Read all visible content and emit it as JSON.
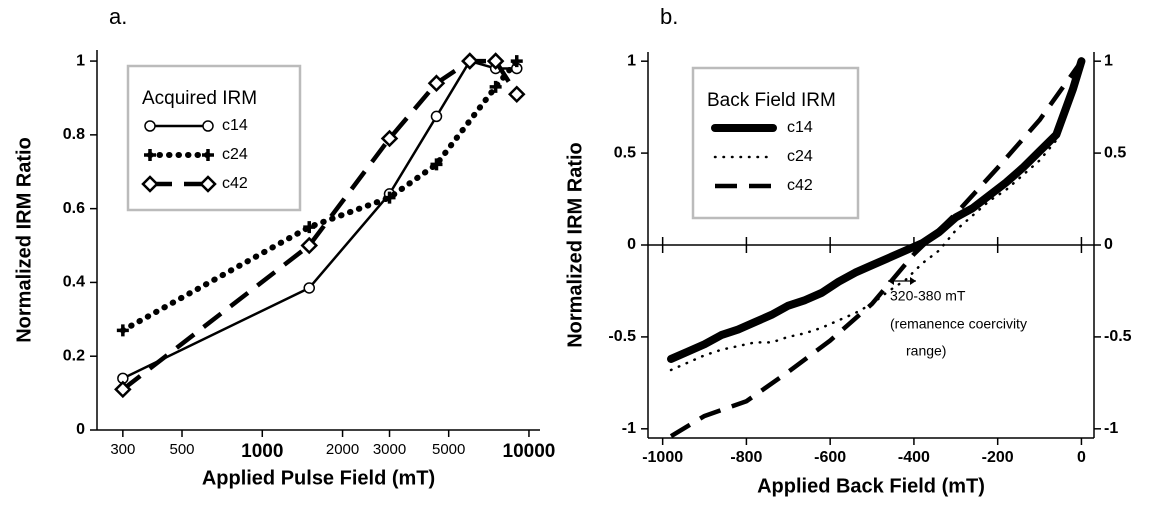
{
  "chart_data": [
    {
      "type": "line",
      "panel_label": "a.",
      "x_label": "Applied Pulse Field (mT)",
      "y_label": "Normalized IRM Ratio",
      "xscale": "log",
      "xlim": [
        240,
        11000
      ],
      "xticks": [
        300,
        500,
        1000,
        2000,
        3000,
        5000,
        10000
      ],
      "ylim": [
        0,
        1.03
      ],
      "yticks": [
        0,
        0.2,
        0.4,
        0.6,
        0.8,
        1
      ],
      "legend_title": "Acquired IRM",
      "legend_position": "upper-left",
      "series": [
        {
          "name": "c14",
          "color": "#000000",
          "style": "solid",
          "marker": "open-circle",
          "x": [
            300,
            1500,
            3000,
            4500,
            6000,
            7500,
            9000
          ],
          "values": [
            0.14,
            0.385,
            0.64,
            0.85,
            1.0,
            0.98,
            0.98
          ]
        },
        {
          "name": "c24",
          "color": "#000000",
          "style": "dotted",
          "marker": "plus",
          "x": [
            300,
            1500,
            3000,
            4500,
            7500,
            9000
          ],
          "values": [
            0.27,
            0.55,
            0.63,
            0.72,
            0.93,
            1.0
          ]
        },
        {
          "name": "c42",
          "color": "#000000",
          "style": "dashed",
          "marker": "diamond",
          "x": [
            300,
            1500,
            3000,
            4500,
            6000,
            7500,
            9000
          ],
          "values": [
            0.11,
            0.5,
            0.79,
            0.94,
            1.0,
            1.0,
            0.91
          ]
        }
      ]
    },
    {
      "type": "line",
      "panel_label": "b.",
      "x_label": "Applied Back Field (mT)",
      "y_label": "Normalized IRM Ratio",
      "xlim": [
        -1035,
        30
      ],
      "xticks": [
        -1000,
        -800,
        -600,
        -400,
        -200,
        0
      ],
      "ylim": [
        -1.05,
        1.05
      ],
      "yticks": [
        -1,
        -0.5,
        0,
        0.5,
        1
      ],
      "y2lim": [
        -1.05,
        1.05
      ],
      "y2ticks": [
        -1,
        -0.5,
        0,
        0.5,
        1
      ],
      "legend_title": "Back Field IRM",
      "legend_position": "upper-left",
      "annotations": [
        "320-380 mT",
        "(remanence coercivity",
        "range)"
      ],
      "series": [
        {
          "name": "c14",
          "color": "#000000",
          "style": "thick-solid",
          "marker": "none",
          "x": [
            -980,
            -940,
            -900,
            -860,
            -820,
            -780,
            -740,
            -700,
            -660,
            -620,
            -580,
            -540,
            -500,
            -460,
            -420,
            -380,
            -340,
            -300,
            -260,
            -220,
            -180,
            -140,
            -100,
            -60,
            -20,
            0
          ],
          "values": [
            -0.62,
            -0.58,
            -0.54,
            -0.49,
            -0.46,
            -0.42,
            -0.38,
            -0.33,
            -0.3,
            -0.26,
            -0.2,
            -0.15,
            -0.11,
            -0.07,
            -0.03,
            0.01,
            0.07,
            0.15,
            0.2,
            0.27,
            0.34,
            0.42,
            0.51,
            0.6,
            0.85,
            1
          ]
        },
        {
          "name": "c24",
          "color": "#000000",
          "style": "fine-dotted",
          "marker": "none",
          "x": [
            -980,
            -940,
            -900,
            -860,
            -820,
            -780,
            -740,
            -700,
            -660,
            -620,
            -580,
            -540,
            -500,
            -460,
            -420,
            -380,
            -340,
            -300,
            -260,
            -220,
            -180,
            -140,
            -100,
            -60,
            -20,
            0
          ],
          "values": [
            -0.68,
            -0.64,
            -0.6,
            -0.57,
            -0.55,
            -0.53,
            -0.53,
            -0.5,
            -0.48,
            -0.45,
            -0.41,
            -0.37,
            -0.32,
            -0.25,
            -0.19,
            -0.1,
            -0.03,
            0.08,
            0.16,
            0.24,
            0.3,
            0.38,
            0.46,
            0.57,
            0.82,
            1
          ]
        },
        {
          "name": "c42",
          "color": "#000000",
          "style": "dashed",
          "marker": "none",
          "x": [
            -980,
            -900,
            -800,
            -700,
            -600,
            -500,
            -400,
            -300,
            -200,
            -100,
            0
          ],
          "values": [
            -1.04,
            -0.93,
            -0.85,
            -0.69,
            -0.52,
            -0.32,
            -0.05,
            0.17,
            0.42,
            0.68,
            1
          ]
        }
      ]
    }
  ]
}
